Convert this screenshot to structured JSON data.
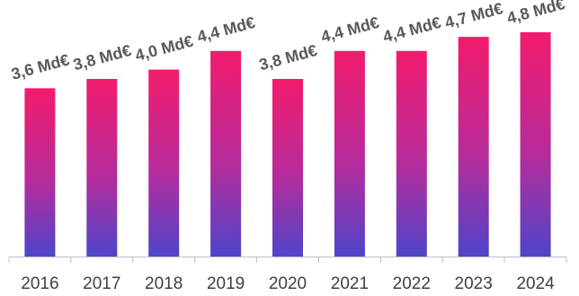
{
  "chart_data": {
    "type": "bar",
    "categories": [
      "2016",
      "2017",
      "2018",
      "2019",
      "2020",
      "2021",
      "2022",
      "2023",
      "2024"
    ],
    "values": [
      3.6,
      3.8,
      4.0,
      4.4,
      3.8,
      4.4,
      4.4,
      4.7,
      4.8
    ],
    "data_labels": [
      "3,6 Md€",
      "3,8 Md€",
      "4,0 Md€",
      "4,4 Md€",
      "3,8 Md€",
      "4,4 Md€",
      "4,4 Md€",
      "4,7 Md€",
      "4,8 Md€"
    ],
    "ylim": [
      0,
      5.2
    ],
    "grid": false,
    "colors": {
      "gradient_top": "#f21b6c",
      "gradient_bottom": "#4f44c8",
      "axis": "#bfbfbf",
      "label": "#595959",
      "tick": "#404040"
    }
  }
}
